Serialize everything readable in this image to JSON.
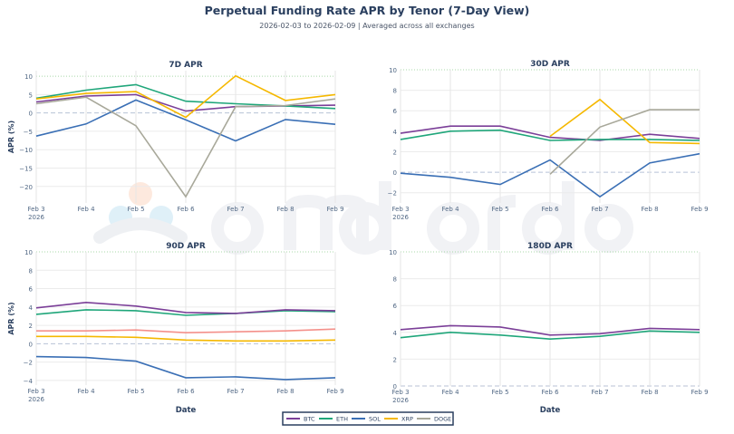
{
  "title": "Perpetual Funding Rate APR by Tenor (7-Day View)",
  "subtitle": "2026-02-03 to 2026-02-09 | Averaged across all exchanges",
  "watermark": "amberdata",
  "legend": [
    {
      "name": "BTC",
      "color": "#7b3f98"
    },
    {
      "name": "ETH",
      "color": "#1fa67a"
    },
    {
      "name": "SOL",
      "color": "#3a6fb5"
    },
    {
      "name": "XRP",
      "color": "#f5b800"
    },
    {
      "name": "DOGE",
      "color": "#a8a89a"
    }
  ],
  "chart_data": [
    {
      "type": "line",
      "title": "7D APR",
      "xlabel": "",
      "ylabel": "APR (%)",
      "ylim": [
        -24.5,
        11.5
      ],
      "yticks": [
        10,
        5,
        0,
        -5,
        -10,
        -15,
        -20
      ],
      "categories": [
        "Feb 3",
        "Feb 4",
        "Feb 5",
        "Feb 6",
        "Feb 7",
        "Feb 8",
        "Feb 9"
      ],
      "first_tick_sub": "2026",
      "series": [
        {
          "name": "BTC",
          "color": "#7b3f98",
          "values": [
            3.0,
            4.6,
            5.0,
            0.5,
            1.7,
            1.9,
            2.1
          ]
        },
        {
          "name": "ETH",
          "color": "#1fa67a",
          "values": [
            4.0,
            6.2,
            7.7,
            3.2,
            2.5,
            1.9,
            1.2
          ]
        },
        {
          "name": "SOL",
          "color": "#3a6fb5",
          "values": [
            -6.3,
            -3.0,
            3.5,
            -1.9,
            -7.6,
            -1.8,
            -3.1
          ]
        },
        {
          "name": "XRP",
          "color": "#f5b800",
          "values": [
            3.8,
            5.3,
            5.8,
            -1.2,
            10.1,
            3.4,
            5.0
          ]
        },
        {
          "name": "DOGE",
          "color": "#a8a89a",
          "values": [
            2.5,
            4.3,
            -3.5,
            -22.8,
            1.7,
            2.0,
            3.8
          ]
        }
      ]
    },
    {
      "type": "line",
      "title": "30D APR",
      "xlabel": "",
      "ylabel": "",
      "ylim": [
        -3,
        10
      ],
      "yticks": [
        10,
        8,
        6,
        4,
        2,
        0,
        -2
      ],
      "categories": [
        "Feb 3",
        "Feb 4",
        "Feb 5",
        "Feb 6",
        "Feb 7",
        "Feb 8",
        "Feb 9"
      ],
      "first_tick_sub": "2026",
      "series": [
        {
          "name": "BTC",
          "color": "#7b3f98",
          "values": [
            3.8,
            4.5,
            4.5,
            3.4,
            3.1,
            3.7,
            3.3
          ]
        },
        {
          "name": "ETH",
          "color": "#1fa67a",
          "values": [
            3.2,
            4.0,
            4.1,
            3.1,
            3.2,
            3.2,
            3.1
          ]
        },
        {
          "name": "SOL",
          "color": "#3a6fb5",
          "values": [
            -0.1,
            -0.5,
            -1.2,
            1.2,
            -2.4,
            0.9,
            1.8
          ]
        },
        {
          "name": "XRP",
          "color": "#f5b800",
          "values": [
            null,
            null,
            null,
            3.5,
            7.1,
            2.9,
            2.8
          ]
        },
        {
          "name": "DOGE",
          "color": "#a8a89a",
          "values": [
            null,
            null,
            null,
            -0.2,
            4.4,
            6.1,
            6.1
          ]
        }
      ]
    },
    {
      "type": "line",
      "title": "90D APR",
      "xlabel": "Date",
      "ylabel": "APR (%)",
      "ylim": [
        -4.5,
        10
      ],
      "yticks": [
        10,
        8,
        6,
        4,
        2,
        0,
        -2,
        -4
      ],
      "categories": [
        "Feb 3",
        "Feb 4",
        "Feb 5",
        "Feb 6",
        "Feb 7",
        "Feb 8",
        "Feb 9"
      ],
      "first_tick_sub": "2026",
      "series": [
        {
          "color": "#f4908a",
          "values": [
            1.4,
            1.4,
            1.5,
            1.2,
            1.3,
            1.4,
            1.6
          ]
        },
        {
          "name": "XRP",
          "color": "#f5b800",
          "values": [
            0.8,
            0.8,
            0.7,
            0.4,
            0.3,
            0.3,
            0.4
          ]
        },
        {
          "name": "SOL",
          "color": "#3a6fb5",
          "values": [
            -1.4,
            -1.5,
            -1.9,
            -3.7,
            -3.6,
            -3.9,
            -3.7
          ]
        },
        {
          "name": "ETH",
          "color": "#1fa67a",
          "values": [
            3.2,
            3.7,
            3.6,
            3.1,
            3.3,
            3.6,
            3.5
          ]
        },
        {
          "name": "BTC",
          "color": "#7b3f98",
          "values": [
            3.9,
            4.5,
            4.1,
            3.4,
            3.3,
            3.7,
            3.6
          ]
        }
      ]
    },
    {
      "type": "line",
      "title": "180D APR",
      "xlabel": "Date",
      "ylabel": "",
      "ylim": [
        0,
        10
      ],
      "yticks": [
        10,
        8,
        6,
        4,
        2,
        0
      ],
      "categories": [
        "Feb 3",
        "Feb 4",
        "Feb 5",
        "Feb 6",
        "Feb 7",
        "Feb 8",
        "Feb 9"
      ],
      "first_tick_sub": "2026",
      "series": [
        {
          "name": "ETH",
          "color": "#1fa67a",
          "values": [
            3.6,
            4.0,
            3.8,
            3.5,
            3.7,
            4.1,
            4.0
          ]
        },
        {
          "name": "BTC",
          "color": "#7b3f98",
          "values": [
            4.2,
            4.5,
            4.4,
            3.8,
            3.9,
            4.3,
            4.2
          ]
        }
      ]
    }
  ]
}
